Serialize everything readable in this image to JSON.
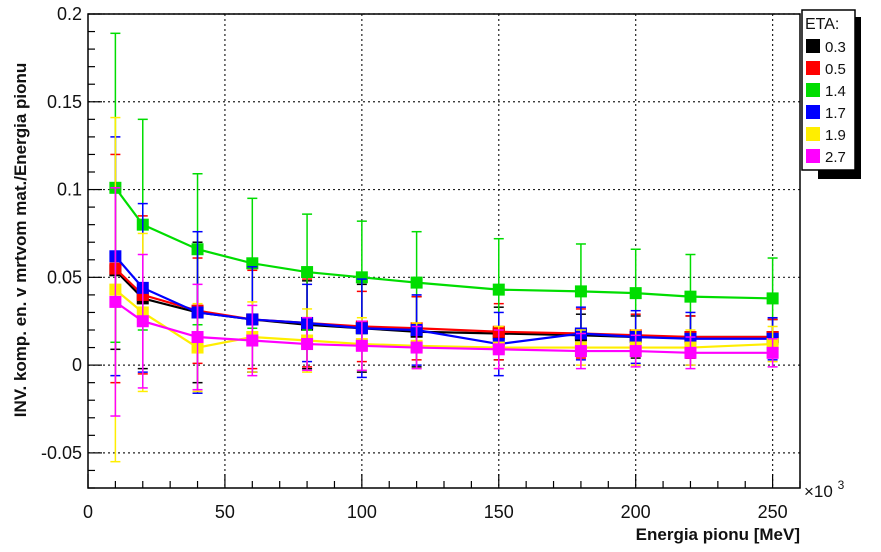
{
  "chart_data": {
    "type": "line",
    "title": "",
    "xlabel": "Energia pionu [MeV]",
    "ylabel": "INV. komp. en. v mrtvom mat./Energia pionu",
    "x_multiplier_label": "×10",
    "x_multiplier_exponent": "3",
    "xlim": [
      0,
      260
    ],
    "ylim": [
      -0.07,
      0.2
    ],
    "grid": true,
    "legend_title": "ETA:",
    "legend_position": "top-right",
    "x_ticks": [
      0,
      50,
      100,
      150,
      200,
      250
    ],
    "x_tick_labels": [
      "0",
      "50",
      "100",
      "150",
      "200",
      "250"
    ],
    "y_ticks": [
      -0.05,
      0,
      0.05,
      0.1,
      0.15,
      0.2
    ],
    "y_tick_labels": [
      "-0.05",
      "0",
      "0.05",
      "0.1",
      "0.15",
      "0.2"
    ],
    "x": [
      10,
      20,
      40,
      60,
      80,
      100,
      120,
      150,
      180,
      200,
      220,
      250
    ],
    "series": [
      {
        "name": "0.3",
        "color": "#000000",
        "values": [
          0.054,
          0.038,
          0.03,
          0.026,
          0.023,
          0.021,
          0.019,
          0.018,
          0.017,
          0.016,
          0.016,
          0.016
        ],
        "errors": [
          0.045,
          0.04,
          0.04,
          0.03,
          0.025,
          0.025,
          0.02,
          0.015,
          0.012,
          0.012,
          0.012,
          0.01
        ]
      },
      {
        "name": "0.5",
        "color": "#ff0000",
        "values": [
          0.055,
          0.04,
          0.031,
          0.026,
          0.024,
          0.022,
          0.021,
          0.019,
          0.018,
          0.017,
          0.016,
          0.016
        ],
        "errors": [
          0.065,
          0.045,
          0.03,
          0.028,
          0.025,
          0.02,
          0.018,
          0.016,
          0.014,
          0.012,
          0.012,
          0.01
        ]
      },
      {
        "name": "1.4",
        "color": "#00dd00",
        "values": [
          0.101,
          0.08,
          0.066,
          0.058,
          0.053,
          0.05,
          0.047,
          0.043,
          0.042,
          0.041,
          0.039,
          0.038
        ],
        "errors": [
          0.088,
          0.06,
          0.043,
          0.037,
          0.033,
          0.032,
          0.029,
          0.029,
          0.027,
          0.025,
          0.024,
          0.023
        ]
      },
      {
        "name": "1.7",
        "color": "#0000ff",
        "values": [
          0.062,
          0.044,
          0.03,
          0.026,
          0.024,
          0.021,
          0.02,
          0.012,
          0.018,
          0.016,
          0.015,
          0.015
        ],
        "errors": [
          0.068,
          0.048,
          0.046,
          0.03,
          0.022,
          0.028,
          0.02,
          0.018,
          0.015,
          0.015,
          0.015,
          0.012
        ]
      },
      {
        "name": "1.9",
        "color": "#ffee00",
        "values": [
          0.043,
          0.03,
          0.01,
          0.016,
          0.014,
          0.012,
          0.011,
          0.01,
          0.01,
          0.01,
          0.01,
          0.012
        ],
        "errors": [
          0.098,
          0.045,
          0.025,
          0.02,
          0.018,
          0.015,
          0.013,
          0.012,
          0.01,
          0.01,
          0.01,
          0.01
        ]
      },
      {
        "name": "2.7",
        "color": "#ff00ff",
        "values": [
          0.036,
          0.025,
          0.016,
          0.014,
          0.012,
          0.011,
          0.01,
          0.009,
          0.008,
          0.008,
          0.007,
          0.007
        ],
        "errors": [
          0.065,
          0.038,
          0.03,
          0.02,
          0.015,
          0.014,
          0.012,
          0.011,
          0.01,
          0.009,
          0.009,
          0.008
        ]
      }
    ]
  }
}
